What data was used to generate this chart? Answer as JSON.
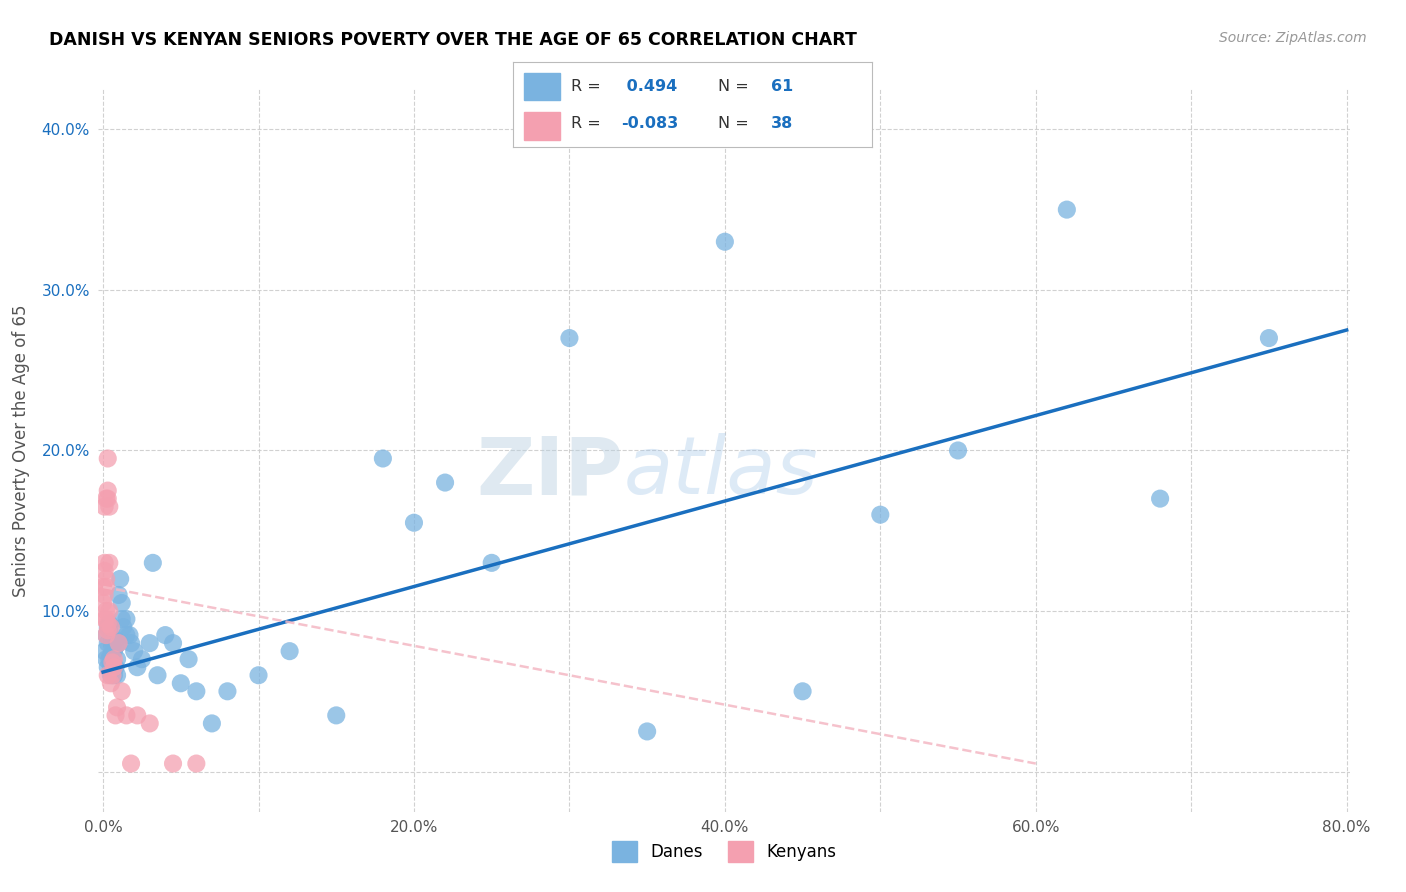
{
  "title": "DANISH VS KENYAN SENIORS POVERTY OVER THE AGE OF 65 CORRELATION CHART",
  "source": "Source: ZipAtlas.com",
  "ylabel": "Seniors Poverty Over the Age of 65",
  "xlim": [
    -0.003,
    0.802
  ],
  "ylim": [
    -0.025,
    0.425
  ],
  "xticks": [
    0.0,
    0.1,
    0.2,
    0.3,
    0.4,
    0.5,
    0.6,
    0.7,
    0.8
  ],
  "xtick_labels": [
    "0.0%",
    "",
    "20.0%",
    "",
    "40.0%",
    "",
    "60.0%",
    "",
    "80.0%"
  ],
  "yticks": [
    0.0,
    0.1,
    0.2,
    0.3,
    0.4
  ],
  "ytick_labels": [
    "",
    "10.0%",
    "20.0%",
    "30.0%",
    "40.0%"
  ],
  "danes_R": 0.494,
  "danes_N": 61,
  "kenyans_R": -0.083,
  "kenyans_N": 38,
  "danes_color": "#7ab3e0",
  "kenyans_color": "#f4a0b0",
  "danes_line_color": "#1a6fbf",
  "kenyans_line_color": "#f4b8c4",
  "watermark": "ZIPatlas",
  "danes_x": [
    0.001,
    0.002,
    0.002,
    0.003,
    0.003,
    0.003,
    0.004,
    0.004,
    0.004,
    0.005,
    0.005,
    0.005,
    0.006,
    0.006,
    0.006,
    0.007,
    0.007,
    0.008,
    0.008,
    0.008,
    0.009,
    0.009,
    0.01,
    0.01,
    0.011,
    0.012,
    0.012,
    0.013,
    0.015,
    0.015,
    0.017,
    0.018,
    0.02,
    0.022,
    0.025,
    0.03,
    0.032,
    0.035,
    0.04,
    0.045,
    0.05,
    0.055,
    0.06,
    0.07,
    0.08,
    0.1,
    0.12,
    0.15,
    0.18,
    0.2,
    0.22,
    0.25,
    0.3,
    0.35,
    0.4,
    0.45,
    0.5,
    0.55,
    0.62,
    0.68,
    0.75
  ],
  "danes_y": [
    0.075,
    0.085,
    0.07,
    0.09,
    0.065,
    0.08,
    0.088,
    0.092,
    0.07,
    0.06,
    0.072,
    0.065,
    0.078,
    0.068,
    0.082,
    0.06,
    0.075,
    0.065,
    0.078,
    0.082,
    0.06,
    0.07,
    0.11,
    0.08,
    0.12,
    0.105,
    0.095,
    0.09,
    0.085,
    0.095,
    0.085,
    0.08,
    0.075,
    0.065,
    0.07,
    0.08,
    0.13,
    0.06,
    0.085,
    0.08,
    0.055,
    0.07,
    0.05,
    0.03,
    0.05,
    0.06,
    0.075,
    0.035,
    0.195,
    0.155,
    0.18,
    0.13,
    0.27,
    0.025,
    0.33,
    0.05,
    0.16,
    0.2,
    0.35,
    0.17,
    0.27
  ],
  "kenyans_x": [
    0.0,
    0.0,
    0.001,
    0.001,
    0.001,
    0.001,
    0.001,
    0.002,
    0.002,
    0.002,
    0.002,
    0.002,
    0.002,
    0.003,
    0.003,
    0.003,
    0.003,
    0.003,
    0.003,
    0.004,
    0.004,
    0.004,
    0.005,
    0.005,
    0.006,
    0.006,
    0.007,
    0.007,
    0.008,
    0.009,
    0.01,
    0.012,
    0.015,
    0.018,
    0.022,
    0.03,
    0.045,
    0.06
  ],
  "kenyans_y": [
    0.115,
    0.105,
    0.095,
    0.11,
    0.125,
    0.13,
    0.165,
    0.085,
    0.095,
    0.1,
    0.115,
    0.12,
    0.17,
    0.06,
    0.088,
    0.092,
    0.17,
    0.175,
    0.195,
    0.1,
    0.13,
    0.165,
    0.055,
    0.09,
    0.06,
    0.068,
    0.07,
    0.065,
    0.035,
    0.04,
    0.08,
    0.05,
    0.035,
    0.005,
    0.035,
    0.03,
    0.005,
    0.005
  ]
}
